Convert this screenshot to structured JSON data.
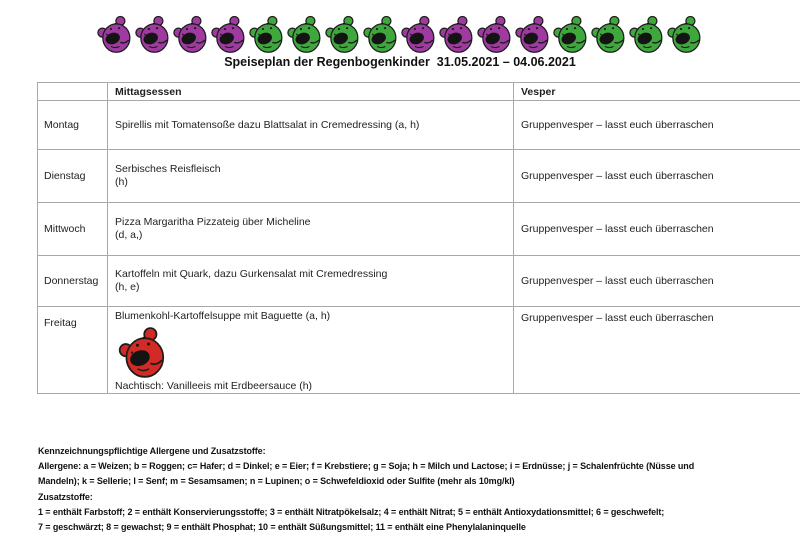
{
  "header": {
    "bears": {
      "pattern": [
        "purple",
        "purple",
        "purple",
        "purple",
        "green",
        "green",
        "green",
        "green",
        "purple",
        "purple",
        "purple",
        "purple",
        "green",
        "green",
        "green",
        "green"
      ],
      "colors": {
        "purple": "#9e3aa0",
        "green": "#3ea83c",
        "red": "#d22b26"
      }
    },
    "title": "Speiseplan der Regenbogenkinder  31.05.2021 – 04.06.2021"
  },
  "table": {
    "columns": {
      "day": "",
      "lunch": "Mittagsessen",
      "vesper": "Vesper"
    },
    "rows": [
      {
        "day": "Montag",
        "meal_line1": "Spirellis mit Tomatensoße dazu Blattsalat in Cremedressing (a, h)",
        "meal_line2": "",
        "vesper": "Gruppenvesper – lasst euch überraschen"
      },
      {
        "day": "Dienstag",
        "meal_line1": "Serbisches Reisfleisch",
        "meal_line2": "(h)",
        "vesper": "Gruppenvesper – lasst euch überraschen"
      },
      {
        "day": "Mittwoch",
        "meal_line1": "Pizza Margaritha Pizzateig über Micheline",
        "meal_line2": "(d, a,)",
        "vesper": "Gruppenvesper – lasst euch überraschen"
      },
      {
        "day": "Donnerstag",
        "meal_line1": "Kartoffeln mit Quark, dazu Gurkensalat mit Cremedressing",
        "meal_line2": "(h, e)",
        "vesper": "Gruppenvesper – lasst euch überraschen"
      },
      {
        "day": "Freitag",
        "meal_line1": "Blumenkohl-Kartoffelsuppe mit Baguette (a, h)",
        "meal_icon": "red-bear",
        "meal_line2": "Nachtisch: Vanilleeis mit Erdbeersauce (h)",
        "vesper": "Gruppenvesper – lasst euch überraschen"
      }
    ]
  },
  "footer": {
    "lines": [
      "Kennzeichnungspflichtige Allergene und Zusatzstoffe:",
      "Allergene: a = Weizen; b = Roggen; c= Hafer; d = Dinkel; e = Eier; f = Krebstiere; g = Soja; h = Milch und Lactose; i = Erdnüsse; j = Schalenfrüchte (Nüsse und",
      "Mandeln); k = Sellerie; l = Senf; m = Sesamsamen; n = Lupinen; o = Schwefeldioxid oder Sulfite (mehr als 10mg/kl)",
      "Zusatzstoffe:",
      "1 = enthält Farbstoff; 2 = enthält Konservierungsstoffe; 3 = enthält Nitratpökelsalz; 4 = enthält Nitrat; 5 = enthält Antioxydationsmittel; 6 = geschwefelt;",
      "7 = geschwärzt; 8 = gewachst; 9 = enthält Phosphat; 10 = enthält Süßungsmittel; 11 = enthält eine Phenylalaninquelle"
    ]
  }
}
